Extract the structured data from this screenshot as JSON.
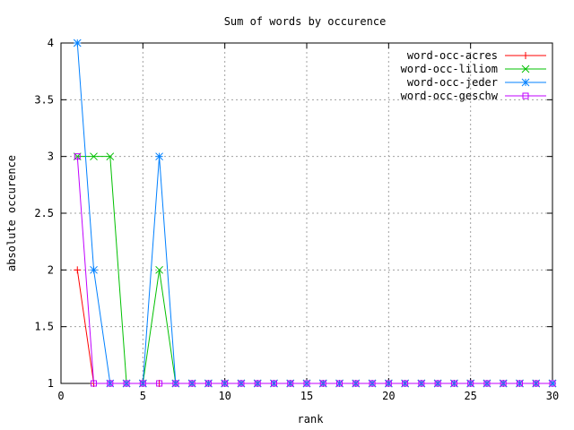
{
  "chart_data": {
    "type": "line",
    "title": "Sum of words by occurence",
    "xlabel": "rank",
    "ylabel": "absolute occurence",
    "xlim": [
      0,
      30
    ],
    "ylim": [
      1,
      4
    ],
    "xticks": [
      0,
      5,
      10,
      15,
      20,
      25,
      30
    ],
    "xtick_labels": [
      "0",
      "5",
      "10",
      "15",
      "20",
      "25",
      "30"
    ],
    "yticks": [
      1,
      1.5,
      2,
      2.5,
      3,
      3.5,
      4
    ],
    "ytick_labels": [
      "1",
      "1.5",
      "2",
      "2.5",
      "3",
      "3.5",
      "4"
    ],
    "grid": true,
    "legend_position": "top-right",
    "series": [
      {
        "name": "word-occ-acres",
        "color": "#ff0000",
        "marker": "plus",
        "x": [
          1,
          2,
          3,
          4,
          5,
          6,
          7,
          8,
          9,
          10,
          11,
          12,
          13,
          14,
          15,
          16,
          17,
          18,
          19,
          20,
          21,
          22,
          23,
          24,
          25,
          26,
          27,
          28,
          29,
          30
        ],
        "y": [
          2,
          1,
          1,
          1,
          1,
          1,
          1,
          1,
          1,
          1,
          1,
          1,
          1,
          1,
          1,
          1,
          1,
          1,
          1,
          1,
          1,
          1,
          1,
          1,
          1,
          1,
          1,
          1,
          1,
          1
        ]
      },
      {
        "name": "word-occ-liliom",
        "color": "#00c000",
        "marker": "x",
        "x": [
          1,
          2,
          3,
          4,
          5,
          6,
          7,
          8,
          9,
          10,
          11,
          12,
          13,
          14,
          15,
          16,
          17,
          18,
          19,
          20,
          21,
          22,
          23,
          24,
          25,
          26,
          27,
          28,
          29,
          30
        ],
        "y": [
          3,
          3,
          3,
          1,
          1,
          2,
          1,
          1,
          1,
          1,
          1,
          1,
          1,
          1,
          1,
          1,
          1,
          1,
          1,
          1,
          1,
          1,
          1,
          1,
          1,
          1,
          1,
          1,
          1,
          1
        ]
      },
      {
        "name": "word-occ-jeder",
        "color": "#0080ff",
        "marker": "star",
        "x": [
          1,
          2,
          3,
          4,
          5,
          6,
          7,
          8,
          9,
          10,
          11,
          12,
          13,
          14,
          15,
          16,
          17,
          18,
          19,
          20,
          21,
          22,
          23,
          24,
          25,
          26,
          27,
          28,
          29,
          30
        ],
        "y": [
          4,
          2,
          1,
          1,
          1,
          3,
          1,
          1,
          1,
          1,
          1,
          1,
          1,
          1,
          1,
          1,
          1,
          1,
          1,
          1,
          1,
          1,
          1,
          1,
          1,
          1,
          1,
          1,
          1,
          1
        ]
      },
      {
        "name": "word-occ-geschw",
        "color": "#c000ff",
        "marker": "square",
        "x": [
          1,
          2,
          3,
          4,
          5,
          6,
          7,
          8,
          9,
          10,
          11,
          12,
          13,
          14,
          15,
          16,
          17,
          18,
          19,
          20,
          21,
          22,
          23,
          24,
          25,
          26,
          27,
          28,
          29,
          30
        ],
        "y": [
          3,
          1,
          1,
          1,
          1,
          1,
          1,
          1,
          1,
          1,
          1,
          1,
          1,
          1,
          1,
          1,
          1,
          1,
          1,
          1,
          1,
          1,
          1,
          1,
          1,
          1,
          1,
          1,
          1,
          1
        ]
      }
    ]
  }
}
